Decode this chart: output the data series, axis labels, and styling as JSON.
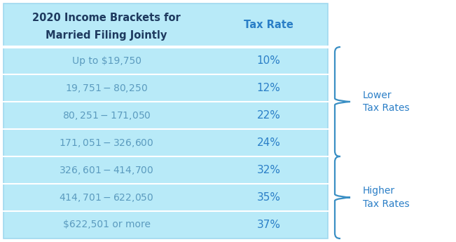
{
  "title_line1": "2020 Income Brackets for",
  "title_line2": "Married Filing Jointly",
  "col2_header": "Tax Rate",
  "brackets": [
    [
      "Up to $19,750",
      "10%"
    ],
    [
      "$19,751 - $80,250",
      "12%"
    ],
    [
      "$80,251 - $171,050",
      "22%"
    ],
    [
      "$171,051 - $326,600",
      "24%"
    ],
    [
      "$326,601 - $414,700",
      "32%"
    ],
    [
      "$414,701 - $622,050",
      "35%"
    ],
    [
      "$622,501 or more",
      "37%"
    ]
  ],
  "table_bg": "#b8eaf8",
  "header_text_color": "#1e3a5f",
  "bracket_text_color": "#5b9bbf",
  "rate_text_color": "#2b7fc7",
  "brace_color": "#3a8fc4",
  "lower_label": "Lower\nTax Rates",
  "higher_label": "Higher\nTax Rates",
  "border_color": "#a0d8ef",
  "divider_color": "#d0f0ff"
}
